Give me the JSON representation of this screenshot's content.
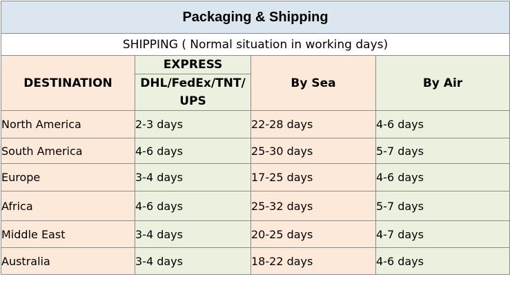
{
  "title": "Packaging & Shipping",
  "subtitle": "SHIPPING ( Normal situation in working days)",
  "headers": {
    "destination": "DESTINATION",
    "express_top": "EXPRESS",
    "express_sub": "DHL/FedEx/TNT/ UPS",
    "sea": "By Sea",
    "air": "By Air"
  },
  "rows": [
    {
      "destination": "North America",
      "express": "2-3 days",
      "sea": "22-28 days",
      "air": "4-6 days"
    },
    {
      "destination": "South America",
      "express": "4-6 days",
      "sea": "25-30 days",
      "air": "5-7 days"
    },
    {
      "destination": "Europe",
      "express": "3-4 days",
      "sea": "17-25 days",
      "air": "4-6 days"
    },
    {
      "destination": "Africa",
      "express": "4-6 days",
      "sea": "25-32 days",
      "air": "5-7 days"
    },
    {
      "destination": "Middle East",
      "express": "3-4 days",
      "sea": "20-25 days",
      "air": "4-7 days"
    },
    {
      "destination": "Australia",
      "express": "3-4 days",
      "sea": "18-22 days",
      "air": "4-6 days"
    }
  ]
}
